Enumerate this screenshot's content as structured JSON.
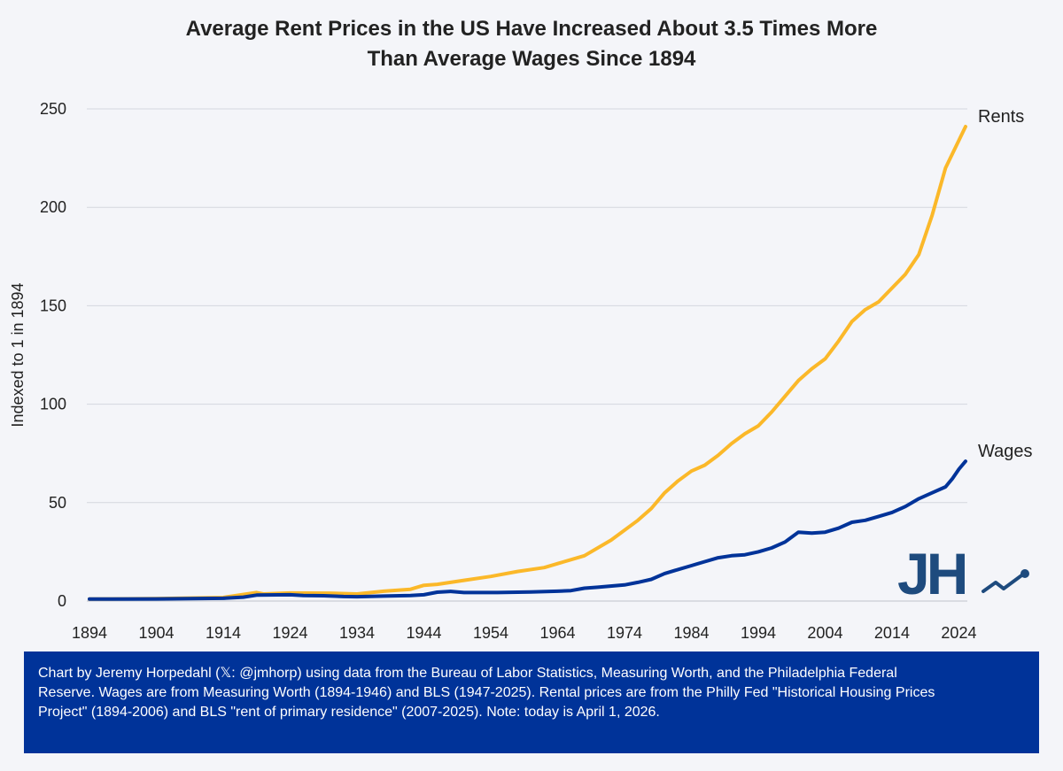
{
  "chart_data": {
    "type": "line",
    "title_lines": [
      "Average Rent Prices in the US Have Increased About 3.5 Times More",
      "Than Average Wages Since 1894"
    ],
    "xlabel": "",
    "ylabel": "Indexed to 1 in 1894",
    "xlim": [
      1894,
      2025
    ],
    "ylim": [
      0,
      250
    ],
    "x_ticks": [
      1894,
      1904,
      1914,
      1924,
      1934,
      1944,
      1954,
      1964,
      1974,
      1984,
      1994,
      2004,
      2014,
      2024
    ],
    "y_ticks": [
      0,
      50,
      100,
      150,
      200,
      250
    ],
    "grid": "horizontal",
    "series": [
      {
        "name": "Rents",
        "color": "#fbb829",
        "points": [
          [
            1894,
            1
          ],
          [
            1904,
            1.2
          ],
          [
            1914,
            1.8
          ],
          [
            1919,
            4.3
          ],
          [
            1920,
            3.6
          ],
          [
            1924,
            4.1
          ],
          [
            1930,
            4.0
          ],
          [
            1934,
            3.6
          ],
          [
            1938,
            5.0
          ],
          [
            1942,
            6.0
          ],
          [
            1944,
            8.0
          ],
          [
            1946,
            8.5
          ],
          [
            1948,
            9.5
          ],
          [
            1950,
            10.5
          ],
          [
            1954,
            12.5
          ],
          [
            1958,
            15
          ],
          [
            1962,
            17
          ],
          [
            1964,
            19
          ],
          [
            1968,
            23
          ],
          [
            1972,
            31
          ],
          [
            1976,
            41
          ],
          [
            1978,
            47
          ],
          [
            1980,
            55
          ],
          [
            1982,
            61
          ],
          [
            1984,
            66
          ],
          [
            1986,
            69
          ],
          [
            1988,
            74
          ],
          [
            1990,
            80
          ],
          [
            1992,
            85
          ],
          [
            1994,
            89
          ],
          [
            1996,
            96
          ],
          [
            1998,
            104
          ],
          [
            2000,
            112
          ],
          [
            2002,
            118
          ],
          [
            2004,
            123
          ],
          [
            2006,
            132
          ],
          [
            2008,
            142
          ],
          [
            2010,
            148
          ],
          [
            2012,
            152
          ],
          [
            2014,
            159
          ],
          [
            2016,
            166
          ],
          [
            2018,
            176
          ],
          [
            2020,
            196
          ],
          [
            2022,
            220
          ],
          [
            2025,
            241
          ]
        ]
      },
      {
        "name": "Wages",
        "color": "#003399",
        "points": [
          [
            1894,
            1
          ],
          [
            1904,
            1.1
          ],
          [
            1914,
            1.4
          ],
          [
            1917,
            2.0
          ],
          [
            1919,
            3.0
          ],
          [
            1924,
            3.2
          ],
          [
            1926,
            2.8
          ],
          [
            1929,
            2.7
          ],
          [
            1932,
            2.3
          ],
          [
            1934,
            2.2
          ],
          [
            1938,
            2.5
          ],
          [
            1942,
            2.8
          ],
          [
            1944,
            3.2
          ],
          [
            1946,
            4.5
          ],
          [
            1948,
            4.9
          ],
          [
            1950,
            4.3
          ],
          [
            1955,
            4.3
          ],
          [
            1960,
            4.6
          ],
          [
            1964,
            5.0
          ],
          [
            1966,
            5.3
          ],
          [
            1968,
            6.5
          ],
          [
            1970,
            7.0
          ],
          [
            1974,
            8.2
          ],
          [
            1976,
            9.5
          ],
          [
            1978,
            11
          ],
          [
            1980,
            14
          ],
          [
            1982,
            16
          ],
          [
            1984,
            18
          ],
          [
            1986,
            20
          ],
          [
            1988,
            22
          ],
          [
            1990,
            23
          ],
          [
            1992,
            23.5
          ],
          [
            1994,
            25
          ],
          [
            1996,
            27
          ],
          [
            1998,
            30
          ],
          [
            2000,
            35
          ],
          [
            2002,
            34.5
          ],
          [
            2004,
            35
          ],
          [
            2006,
            37
          ],
          [
            2008,
            40
          ],
          [
            2010,
            41
          ],
          [
            2012,
            43
          ],
          [
            2014,
            45
          ],
          [
            2016,
            48
          ],
          [
            2018,
            52
          ],
          [
            2020,
            55
          ],
          [
            2022,
            58
          ],
          [
            2023,
            62
          ],
          [
            2024,
            67
          ],
          [
            2025,
            71
          ]
        ]
      }
    ]
  },
  "logo": {
    "text": "JH",
    "color": "#1e4b7e"
  },
  "footer": {
    "lines": [
      "Chart by Jeremy Horpedahl (𝕏: @jmhorp) using data from the Bureau of Labor Statistics, Measuring Worth, and the Philadelphia Federal",
      "Reserve. Wages are from Measuring Worth (1894-1946)  and BLS (1947-2025).  Rental prices are from the Philly Fed \"Historical Housing Prices",
      "Project\" (1894-2006)  and BLS \"rent of primary residence\" (2007-2025).  Note: today is April 1, 2026."
    ]
  }
}
